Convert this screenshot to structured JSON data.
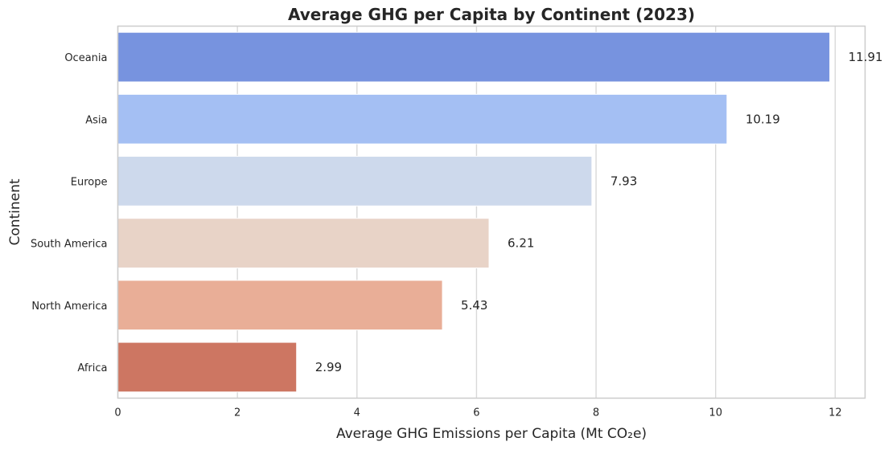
{
  "chart_data": {
    "type": "bar",
    "orientation": "horizontal",
    "title": "Average GHG per Capita by Continent (2023)",
    "xlabel": "Average GHG Emissions per Capita  (Mt CO₂e)",
    "ylabel": "Continent",
    "categories": [
      "Oceania",
      "Asia",
      "Europe",
      "South America",
      "North America",
      "Africa"
    ],
    "values": [
      11.91,
      10.19,
      7.93,
      6.21,
      5.43,
      2.99
    ],
    "value_labels": [
      "11.91",
      "10.19",
      "7.93",
      "6.21",
      "5.43",
      "2.99"
    ],
    "colors": [
      "#7793df",
      "#a4bff3",
      "#cdd9ec",
      "#e8d3c7",
      "#e9ae97",
      "#cd7662"
    ],
    "xlim": [
      0,
      12.5
    ],
    "xticks": [
      0,
      2,
      4,
      6,
      8,
      10,
      12
    ],
    "xtick_labels": [
      "0",
      "2",
      "4",
      "6",
      "8",
      "10",
      "12"
    ],
    "grid": "vertical",
    "legend": "none"
  }
}
